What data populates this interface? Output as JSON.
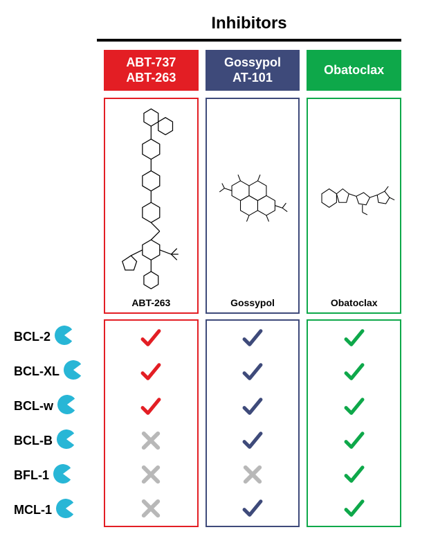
{
  "type": "infographic",
  "title": "Inhibitors",
  "title_fontsize": 24,
  "title_fontweight": "bold",
  "topbar_color": "#000000",
  "pacman_color": "#28b6d6",
  "x_color": "#b8b8b8",
  "background_color": "#ffffff",
  "columns": [
    {
      "header_lines": [
        "ABT-737",
        "ABT-263"
      ],
      "color": "#e31e24",
      "structure_label": "ABT-263",
      "marks": [
        "check",
        "check",
        "check",
        "x",
        "x",
        "x"
      ]
    },
    {
      "header_lines": [
        "Gossypol",
        "AT-101"
      ],
      "color": "#3e4a7a",
      "structure_label": "Gossypol",
      "marks": [
        "check",
        "check",
        "check",
        "check",
        "x",
        "check"
      ]
    },
    {
      "header_lines": [
        "Obatoclax"
      ],
      "color": "#0ea84a",
      "structure_label": "Obatoclax",
      "marks": [
        "check",
        "check",
        "check",
        "check",
        "check",
        "check"
      ]
    }
  ],
  "rows": [
    "BCL-2",
    "BCL-XL",
    "BCL-w",
    "BCL-B",
    "BFL-1",
    "MCL-1"
  ]
}
